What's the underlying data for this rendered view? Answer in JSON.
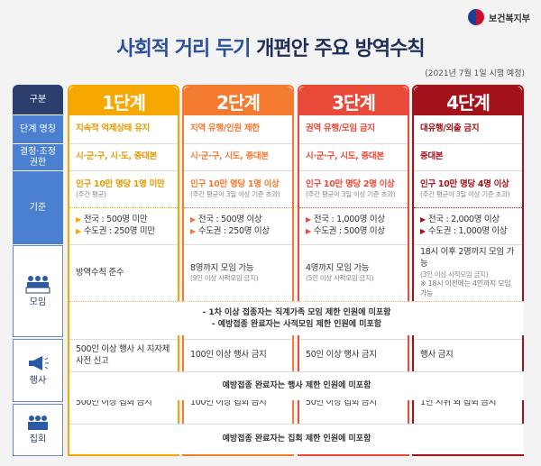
{
  "org": "보건복지부",
  "title": {
    "part1": "사회적 거리 두기",
    "part2": "개편안 주요 방역수칙"
  },
  "subtitle": "(2021년 7월 1일 시행 예정)",
  "colors": {
    "stage1": "#f6a800",
    "stage2": "#f47a30",
    "stage3": "#ea4a3a",
    "stage4": "#a3121b",
    "label": "#4a80cf",
    "navy": "#2b3f6e"
  },
  "row_labels": {
    "category": "구분",
    "name": "단계 명칭",
    "authority": "결정·조정 권한",
    "criteria": "기준",
    "gathering": "모임",
    "event": "행사",
    "rally": "집회"
  },
  "stages": [
    {
      "label": "1단계",
      "name": "지속적 억제상태 유지",
      "authority": "시·군·구, 시·도, 중대본",
      "criteria": "인구 10만 명당 1명 미만",
      "criteria_note": "(주간 평균)",
      "national": "전국 : 500명 미만",
      "capital": "수도권 : 250명 미만",
      "gathering": "방역수칙 준수",
      "gathering_note": "",
      "event": "500인 이상 행사 시 지자체 사전 신고",
      "rally": "500인 이상 집회 금지"
    },
    {
      "label": "2단계",
      "name": "지역 유행/인원 제한",
      "authority": "시·군·구, 시도, 중대본",
      "criteria": "인구 10만 명당 1명 이상",
      "criteria_note": "(주간 평균이 3일 이상 기준 초과)",
      "national": "전국 : 500명 이상",
      "capital": "수도권 : 250명 이상",
      "gathering": "8명까지 모임 가능",
      "gathering_note": "(9인 이상 사적모임 금지)",
      "event": "100인 이상 행사 금지",
      "rally": "100인 이상 집회 금지"
    },
    {
      "label": "3단계",
      "name": "권역 유행/모임 금지",
      "authority": "시·군·구, 시도, 중대본",
      "criteria": "인구 10만 명당 2명 이상",
      "criteria_note": "(주간 평균이 3일 이상 기준 초과)",
      "national": "전국 : 1,000명 이상",
      "capital": "수도권 : 500명 이상",
      "gathering": "4명까지 모임 가능",
      "gathering_note": "(5인 이상 사적모임 금지)",
      "event": "50인 이상 행사 금지",
      "rally": "50인 이상 집회 금지"
    },
    {
      "label": "4단계",
      "name": "대유행/외출 금지",
      "authority": "중대본",
      "criteria": "인구 10만 명당 4명 이상",
      "criteria_note": "(주간 평균이 3일 이상 기준 초과)",
      "national": "전국 : 2,000명 이상",
      "capital": "수도권 : 1,000명 이상",
      "gathering": "18시 이후 2명까지 모임 가능",
      "gathering_note": "(3인 이상 사적모임 금지)",
      "gathering_extra": "※ 18시 이전에는 4인까지 모임 가능",
      "event": "행사 금지",
      "rally": "1인 시위 외 집회 금지"
    }
  ],
  "notes": {
    "gathering1": "- 1차 이상 접종자는 직계가족 모임 제한 인원에 미포함",
    "gathering2": "- 예방접종 완료자는 사적모임 제한 인원에 미포함",
    "event": "예방접종 완료자는 행사 제한 인원에 미포함",
    "rally": "예방접종 완료자는 집회 제한 인원에 미포함"
  },
  "icons": {
    "logo": "taegeuk-logo",
    "gathering": "people-group-icon",
    "event": "megaphone-icon",
    "rally": "crowd-icon"
  }
}
